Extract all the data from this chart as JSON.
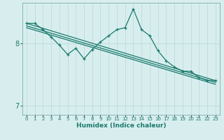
{
  "xlabel": "Humidex (Indice chaleur)",
  "bg_color": "#d8eeee",
  "line_color": "#1a7a6e",
  "grid_color": "#b8d8d8",
  "xlim": [
    -0.5,
    23.5
  ],
  "ylim": [
    6.85,
    8.65
  ],
  "yticks": [
    7,
    8
  ],
  "xticks": [
    0,
    1,
    2,
    3,
    4,
    5,
    6,
    7,
    8,
    9,
    10,
    11,
    12,
    13,
    14,
    15,
    16,
    17,
    18,
    19,
    20,
    21,
    22,
    23
  ],
  "main_x": [
    0,
    1,
    2,
    3,
    4,
    5,
    6,
    7,
    8,
    9,
    10,
    11,
    12,
    13,
    14,
    15,
    16,
    17,
    18,
    19,
    20,
    21,
    22,
    23
  ],
  "main_y": [
    8.32,
    8.32,
    8.22,
    8.1,
    7.97,
    7.82,
    7.92,
    7.75,
    7.9,
    8.02,
    8.12,
    8.22,
    8.25,
    8.55,
    8.22,
    8.12,
    7.88,
    7.72,
    7.62,
    7.55,
    7.55,
    7.45,
    7.4,
    7.4
  ],
  "line1_x": [
    0,
    23
  ],
  "line1_y": [
    8.32,
    7.4
  ],
  "line2_x": [
    0,
    23
  ],
  "line2_y": [
    8.28,
    7.37
  ],
  "line3_x": [
    0,
    23
  ],
  "line3_y": [
    8.25,
    7.34
  ]
}
